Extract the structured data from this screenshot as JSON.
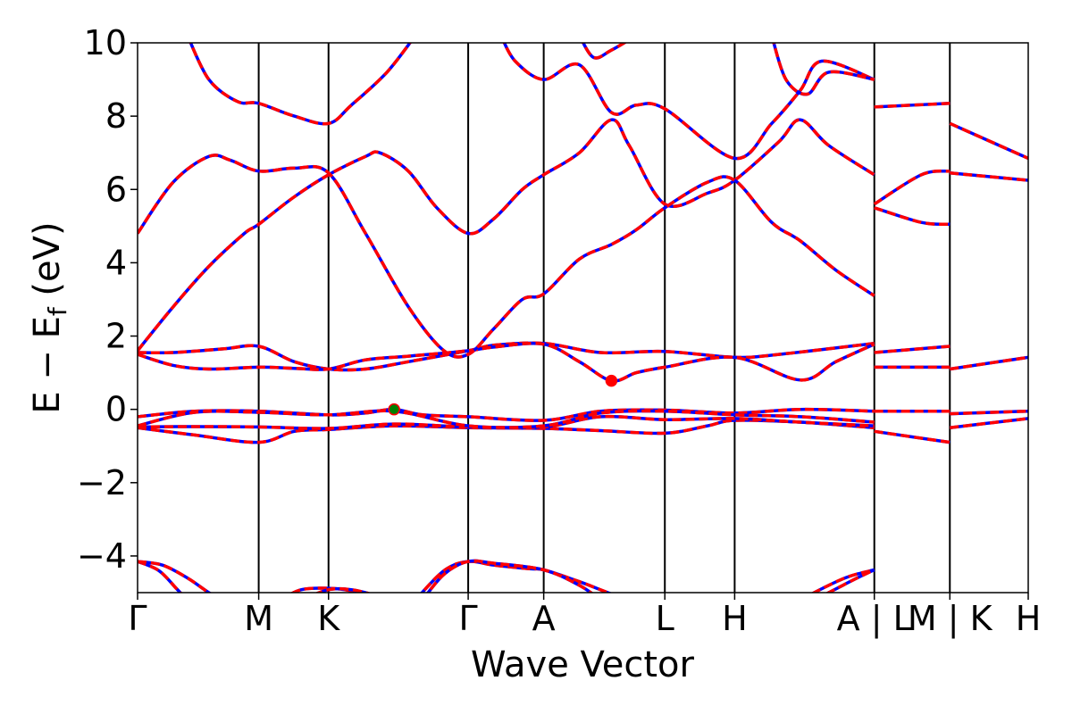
{
  "chart_data": {
    "type": "line",
    "xlabel": "Wave Vector",
    "ylabel": "E − E",
    "ylabel_sub": "f",
    "ylabel_unit": " (eV)",
    "ylim": [
      -5,
      10
    ],
    "yticks": [
      -4,
      -2,
      0,
      2,
      4,
      6,
      8,
      10
    ],
    "ytick_labels": [
      "−4",
      "−2",
      "0",
      "2",
      "4",
      "6",
      "8",
      "10"
    ],
    "xlim": [
      0,
      12.5
    ],
    "kpoints": [
      {
        "label": "Γ",
        "x": 0
      },
      {
        "label": "M",
        "x": 1.7
      },
      {
        "label": "K",
        "x": 2.68
      },
      {
        "label": "Γ",
        "x": 4.64
      },
      {
        "label": "A",
        "x": 5.7
      },
      {
        "label": "L",
        "x": 7.4
      },
      {
        "label": "H",
        "x": 8.38
      },
      {
        "label": "A | L",
        "x": 10.34
      },
      {
        "label": "M | K",
        "x": 11.4
      },
      {
        "label": "H",
        "x": 12.5
      }
    ],
    "vlines": [
      1.7,
      2.68,
      4.64,
      5.7,
      7.4,
      8.38,
      10.34,
      11.4
    ],
    "series_colors": {
      "spin_up": "#0000ff",
      "spin_down": "#ff0000"
    },
    "markers": [
      {
        "name": "vbm",
        "x": 3.6,
        "y": 0.0,
        "color": "#008000"
      },
      {
        "name": "cbm",
        "x": 6.65,
        "y": 0.78,
        "color": "#ff0000"
      }
    ],
    "bands": [
      [
        [
          0,
          -4.15
        ],
        [
          0.3,
          -4.4
        ],
        [
          0.55,
          -4.9
        ],
        [
          0.7,
          -5.2
        ]
      ],
      [
        [
          0,
          -4.15
        ],
        [
          0.35,
          -4.25
        ],
        [
          0.7,
          -4.6
        ],
        [
          1.0,
          -5.0
        ],
        [
          1.2,
          -5.2
        ]
      ],
      [
        [
          2.0,
          -5.2
        ],
        [
          2.3,
          -4.92
        ],
        [
          2.68,
          -4.88
        ],
        [
          3.0,
          -4.95
        ],
        [
          3.3,
          -5.1
        ],
        [
          3.5,
          -5.25
        ]
      ],
      [
        [
          2.3,
          -5.2
        ],
        [
          2.68,
          -4.92
        ],
        [
          3.0,
          -4.92
        ],
        [
          3.3,
          -5.05
        ]
      ],
      [
        [
          3.9,
          -5.2
        ],
        [
          4.3,
          -4.4
        ],
        [
          4.64,
          -4.15
        ],
        [
          5.0,
          -4.25
        ],
        [
          5.5,
          -4.35
        ],
        [
          5.7,
          -4.38
        ],
        [
          6.2,
          -4.7
        ],
        [
          6.6,
          -5.0
        ],
        [
          6.9,
          -5.2
        ]
      ],
      [
        [
          4.0,
          -5.2
        ],
        [
          4.3,
          -4.5
        ],
        [
          4.64,
          -4.15
        ],
        [
          5.0,
          -4.2
        ],
        [
          5.7,
          -4.38
        ],
        [
          6.2,
          -4.8
        ],
        [
          6.5,
          -5.2
        ]
      ],
      [
        [
          9.3,
          -5.2
        ],
        [
          9.7,
          -4.8
        ],
        [
          10.0,
          -4.55
        ],
        [
          10.34,
          -4.38
        ]
      ],
      [
        [
          9.5,
          -5.2
        ],
        [
          9.8,
          -4.9
        ],
        [
          10.1,
          -4.6
        ],
        [
          10.34,
          -4.38
        ]
      ],
      [
        [
          0,
          -0.5
        ],
        [
          0.8,
          -0.7
        ],
        [
          1.7,
          -0.9
        ],
        [
          2.2,
          -0.6
        ],
        [
          2.68,
          -0.55
        ],
        [
          3.6,
          -0.45
        ],
        [
          4.64,
          -0.5
        ],
        [
          5.7,
          -0.52
        ],
        [
          6.5,
          -0.58
        ],
        [
          7.4,
          -0.65
        ],
        [
          8.0,
          -0.45
        ],
        [
          8.38,
          -0.3
        ],
        [
          9.3,
          -0.35
        ],
        [
          10.34,
          -0.5
        ]
      ],
      [
        [
          0,
          -0.48
        ],
        [
          0.8,
          -0.47
        ],
        [
          1.7,
          -0.48
        ],
        [
          2.68,
          -0.52
        ],
        [
          3.6,
          -0.4
        ],
        [
          4.64,
          -0.48
        ],
        [
          5.7,
          -0.48
        ],
        [
          6.5,
          -0.2
        ],
        [
          7.4,
          -0.28
        ],
        [
          8.38,
          -0.25
        ],
        [
          9.3,
          -0.35
        ],
        [
          10.34,
          -0.45
        ]
      ],
      [
        [
          0,
          -0.2
        ],
        [
          0.8,
          -0.05
        ],
        [
          1.7,
          -0.05
        ],
        [
          2.68,
          -0.15
        ],
        [
          3.2,
          -0.1
        ],
        [
          3.6,
          0.0
        ],
        [
          4.0,
          -0.15
        ],
        [
          4.64,
          -0.2
        ],
        [
          5.7,
          -0.3
        ],
        [
          6.5,
          -0.05
        ],
        [
          7.4,
          -0.02
        ],
        [
          8.38,
          -0.1
        ],
        [
          9.3,
          0.0
        ],
        [
          10.34,
          -0.05
        ]
      ],
      [
        [
          0,
          -0.45
        ],
        [
          0.8,
          -0.08
        ],
        [
          1.7,
          -0.08
        ],
        [
          2.68,
          -0.15
        ],
        [
          3.6,
          -0.05
        ],
        [
          4.64,
          -0.45
        ],
        [
          5.7,
          -0.45
        ],
        [
          6.5,
          -0.1
        ],
        [
          7.4,
          -0.05
        ],
        [
          8.38,
          -0.15
        ],
        [
          9.3,
          -0.2
        ],
        [
          10.34,
          -0.35
        ]
      ],
      [
        [
          10.34,
          -0.05
        ],
        [
          11.4,
          -0.05
        ]
      ],
      [
        [
          10.34,
          -0.6
        ],
        [
          11.4,
          -0.9
        ]
      ],
      [
        [
          11.4,
          -0.12
        ],
        [
          12.5,
          -0.05
        ]
      ],
      [
        [
          11.4,
          -0.5
        ],
        [
          12.5,
          -0.25
        ]
      ],
      [
        [
          0,
          1.55
        ],
        [
          0.5,
          1.55
        ],
        [
          1.2,
          1.65
        ],
        [
          1.7,
          1.72
        ],
        [
          2.2,
          1.3
        ],
        [
          2.68,
          1.1
        ],
        [
          3.2,
          1.1
        ],
        [
          3.8,
          1.3
        ],
        [
          4.64,
          1.6
        ],
        [
          5.0,
          1.75
        ],
        [
          5.7,
          1.8
        ],
        [
          6.5,
          1.55
        ],
        [
          7.4,
          1.58
        ],
        [
          8.38,
          1.42
        ],
        [
          9.0,
          1.5
        ],
        [
          10.34,
          1.8
        ]
      ],
      [
        [
          0,
          1.5
        ],
        [
          0.5,
          1.2
        ],
        [
          1.0,
          1.1
        ],
        [
          1.7,
          1.15
        ],
        [
          2.2,
          1.12
        ],
        [
          2.68,
          1.1
        ],
        [
          3.2,
          1.35
        ],
        [
          3.8,
          1.45
        ],
        [
          4.64,
          1.6
        ],
        [
          5.0,
          1.7
        ],
        [
          5.7,
          1.78
        ],
        [
          6.2,
          1.3
        ],
        [
          6.65,
          0.78
        ],
        [
          7.0,
          1.0
        ],
        [
          7.4,
          1.15
        ],
        [
          8.38,
          1.42
        ],
        [
          9.3,
          0.8
        ],
        [
          9.8,
          1.3
        ],
        [
          10.34,
          1.78
        ]
      ],
      [
        [
          10.34,
          1.55
        ],
        [
          11.4,
          1.72
        ]
      ],
      [
        [
          10.34,
          1.15
        ],
        [
          11.4,
          1.15
        ]
      ],
      [
        [
          11.4,
          1.1
        ],
        [
          12.5,
          1.42
        ]
      ],
      [
        [
          0,
          1.6
        ],
        [
          0.5,
          2.8
        ],
        [
          1.0,
          3.9
        ],
        [
          1.5,
          4.8
        ],
        [
          1.7,
          5.05
        ],
        [
          2.2,
          5.8
        ],
        [
          2.68,
          6.4
        ],
        [
          3.2,
          6.9
        ],
        [
          3.4,
          7.0
        ],
        [
          3.8,
          6.5
        ],
        [
          4.2,
          5.5
        ],
        [
          4.64,
          4.8
        ],
        [
          5.0,
          5.2
        ],
        [
          5.4,
          6.0
        ],
        [
          5.7,
          6.4
        ],
        [
          6.2,
          7.0
        ],
        [
          6.65,
          7.9
        ],
        [
          6.9,
          7.2
        ],
        [
          7.4,
          5.6
        ],
        [
          8.0,
          5.9
        ],
        [
          8.38,
          6.25
        ],
        [
          9.0,
          7.3
        ],
        [
          9.3,
          7.9
        ],
        [
          9.7,
          7.2
        ],
        [
          10.34,
          6.4
        ]
      ],
      [
        [
          0,
          4.8
        ],
        [
          0.5,
          6.2
        ],
        [
          1.0,
          6.9
        ],
        [
          1.3,
          6.8
        ],
        [
          1.7,
          6.5
        ],
        [
          2.2,
          6.58
        ],
        [
          2.68,
          6.45
        ],
        [
          3.2,
          4.8
        ],
        [
          3.8,
          2.8
        ],
        [
          4.3,
          1.6
        ],
        [
          4.64,
          1.5
        ],
        [
          5.0,
          2.2
        ],
        [
          5.4,
          3.0
        ],
        [
          5.7,
          3.15
        ],
        [
          6.2,
          4.1
        ],
        [
          6.65,
          4.5
        ],
        [
          7.0,
          4.9
        ],
        [
          7.4,
          5.5
        ],
        [
          8.0,
          6.2
        ],
        [
          8.38,
          6.25
        ],
        [
          8.9,
          5.1
        ],
        [
          9.3,
          4.6
        ],
        [
          9.8,
          3.8
        ],
        [
          10.34,
          3.1
        ]
      ],
      [
        [
          10.34,
          5.6
        ],
        [
          11.0,
          6.4
        ],
        [
          11.4,
          6.5
        ]
      ],
      [
        [
          10.34,
          5.5
        ],
        [
          11.0,
          5.1
        ],
        [
          11.4,
          5.05
        ]
      ],
      [
        [
          11.4,
          6.45
        ],
        [
          12.5,
          6.25
        ]
      ],
      [
        [
          0.7,
          10.2
        ],
        [
          1.0,
          9.0
        ],
        [
          1.4,
          8.4
        ],
        [
          1.7,
          8.35
        ],
        [
          2.2,
          8.0
        ],
        [
          2.68,
          7.8
        ],
        [
          3.0,
          8.3
        ],
        [
          3.5,
          9.2
        ],
        [
          3.9,
          10.2
        ]
      ],
      [
        [
          5.1,
          10.2
        ],
        [
          5.3,
          9.5
        ],
        [
          5.7,
          9.0
        ],
        [
          6.2,
          9.4
        ],
        [
          6.65,
          8.1
        ],
        [
          7.0,
          8.3
        ],
        [
          7.4,
          8.2
        ],
        [
          8.38,
          6.85
        ],
        [
          8.9,
          7.8
        ],
        [
          9.3,
          8.7
        ],
        [
          9.6,
          9.5
        ],
        [
          10.34,
          9.0
        ]
      ],
      [
        [
          6.2,
          10.2
        ],
        [
          6.4,
          9.6
        ],
        [
          6.65,
          9.8
        ],
        [
          7.0,
          10.2
        ]
      ],
      [
        [
          8.0,
          10.2
        ],
        [
          8.38,
          10.5
        ]
      ],
      [
        [
          8.9,
          10.2
        ],
        [
          9.1,
          9.0
        ],
        [
          9.4,
          8.6
        ],
        [
          9.7,
          9.2
        ],
        [
          10.34,
          9.0
        ]
      ],
      [
        [
          10.34,
          8.25
        ],
        [
          11.4,
          8.35
        ]
      ],
      [
        [
          11.4,
          7.8
        ],
        [
          12.5,
          6.85
        ]
      ]
    ]
  }
}
